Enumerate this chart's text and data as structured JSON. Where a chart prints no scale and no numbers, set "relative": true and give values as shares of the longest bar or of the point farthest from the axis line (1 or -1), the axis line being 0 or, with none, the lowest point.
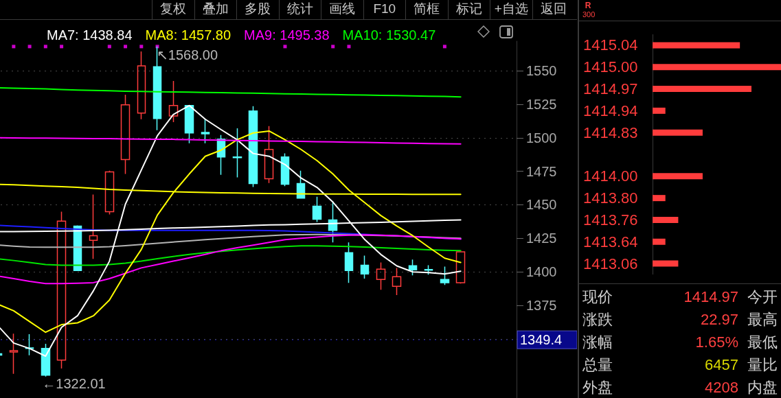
{
  "chart_data": [
    {
      "type": "candlestick",
      "categories": [
        null,
        null,
        null,
        null,
        null,
        null,
        null,
        null,
        null,
        null,
        null,
        null,
        null,
        null,
        null,
        null,
        null,
        null,
        null,
        null,
        null,
        null,
        null,
        null,
        null,
        null,
        null,
        null,
        null,
        null,
        null,
        null,
        null
      ],
      "ohlc": [
        [
          1339,
          1340,
          1337,
          1338
        ],
        [
          1340.3,
          1354,
          1324,
          1341.3
        ],
        [
          1343.4,
          1353.6,
          1337.8,
          1342.9
        ],
        [
          1342.9,
          1346.4,
          1322.01,
          1323
        ],
        [
          1334.2,
          1444.9,
          1328,
          1437.8
        ],
        [
          1434.2,
          1434.7,
          1401,
          1401
        ],
        [
          1423.5,
          1457.7,
          1409.7,
          1427
        ],
        [
          1444.9,
          1475.5,
          1442.9,
          1474.5
        ],
        [
          1483.7,
          1532.1,
          1473,
          1524.5
        ],
        [
          1518.4,
          1564.3,
          1513.8,
          1553.6
        ],
        [
          1553,
          1568,
          1505.6,
          1514.3
        ],
        [
          1516.3,
          1542.3,
          1511.7,
          1524
        ],
        [
          1524,
          1524,
          1495.9,
          1503.6
        ],
        [
          1504,
          1513.8,
          1495.9,
          1503
        ],
        [
          1499,
          1502,
          1472.4,
          1485.7
        ],
        [
          1485.7,
          1507,
          1470.4,
          1485.2
        ],
        [
          1519.9,
          1523.5,
          1463.3,
          1465.8
        ],
        [
          1469.4,
          1508.7,
          1466.3,
          1491.3
        ],
        [
          1485.7,
          1488.3,
          1464,
          1465.3
        ],
        [
          1465.8,
          1475.5,
          1455,
          1455
        ],
        [
          1449,
          1456,
          1437.2,
          1439.3
        ],
        [
          1438.8,
          1452.5,
          1422,
          1431
        ],
        [
          1414.3,
          1422,
          1391.8,
          1401
        ],
        [
          1405,
          1412.2,
          1395,
          1398.5
        ],
        [
          1394.4,
          1407,
          1386.7,
          1402
        ],
        [
          1389.3,
          1403,
          1382.7,
          1396.4
        ],
        [
          1404.6,
          1409.2,
          1397.4,
          1401.5
        ],
        [
          1401.8,
          1405,
          1398,
          1401.3
        ],
        [
          1394.4,
          1404,
          1390.3,
          1392
        ],
        [
          1392,
          1415,
          1391.3,
          1414.97
        ],
        null,
        null,
        null
      ],
      "colors": [
        "#54fcfc",
        "#ff3c3c",
        "#54fcfc",
        "#54fcfc",
        "#ff3c3c",
        "#54fcfc",
        "#ff3c3c",
        "#ff3c3c",
        "#ff3c3c",
        "#ff3c3c",
        "#54fcfc",
        "#ff3c3c",
        "#54fcfc",
        "#54fcfc",
        "#54fcfc",
        "#54fcfc",
        "#54fcfc",
        "#ff3c3c",
        "#54fcfc",
        "#54fcfc",
        "#54fcfc",
        "#54fcfc",
        "#54fcfc",
        "#54fcfc",
        "#ff3c3c",
        "#ff3c3c",
        "#54fcfc",
        "#54fcfc",
        "#54fcfc",
        "#ff3c3c",
        null,
        null,
        null
      ],
      "series": [
        {
          "type": "line",
          "color": "#1e1eff",
          "values": [
            1434.7,
            1434.2,
            1433.6,
            1433,
            1432.4,
            1431.8,
            1431.3,
            1431,
            1431,
            1431,
            1431,
            1431,
            1431,
            1431,
            1431,
            1431,
            1431,
            1430.8,
            1430.5,
            1430,
            1429.5,
            1429,
            1428.5,
            1428,
            1427.4,
            1426.8,
            1426.2,
            1425.6,
            1425,
            1424.5,
            null,
            null,
            null
          ]
        },
        {
          "type": "line",
          "color": "#b4b4b4",
          "values": [
            1420,
            1419.2,
            1418.6,
            1418.4,
            1418.4,
            1418.4,
            1418.4,
            1418.8,
            1419.6,
            1420.5,
            1421.4,
            1422.3,
            1423.2,
            1424,
            1424.8,
            1425.6,
            1426.3,
            1427,
            1427.6,
            1427.8,
            1427.9,
            1427.8,
            1427.6,
            1427.4,
            1427.1,
            1426.8,
            1426.4,
            1426,
            1425.5,
            1425,
            null,
            null,
            null
          ]
        },
        {
          "type": "line",
          "color": "#00e600",
          "values": [
            1409.7,
            1408.5,
            1407,
            1405.5,
            1405,
            1405,
            1405,
            1405.5,
            1406.5,
            1408,
            1409.8,
            1411.5,
            1413,
            1414.3,
            1415.4,
            1416.4,
            1417.3,
            1418.2,
            1418.9,
            1419.4,
            1419.4,
            1419.2,
            1418.9,
            1418.5,
            1418,
            1417.5,
            1417,
            1416.5,
            1416.1,
            1415.8,
            null,
            null,
            null
          ]
        },
        {
          "type": "line",
          "color": "#ff00ff",
          "values": [
            1397,
            1395,
            1393,
            1391.3,
            1391.3,
            1391.6,
            1392,
            1395,
            1399,
            1403,
            1405.5,
            1408,
            1410.5,
            1413,
            1415.8,
            1418,
            1420,
            1422,
            1424,
            1425,
            1426,
            1426.8,
            1427.4,
            1427.6,
            1427.4,
            1427,
            1426.4,
            1425.8,
            1425.1,
            1424.5,
            null,
            null,
            null
          ]
        },
        {
          "type": "line",
          "color": "#ffff00",
          "values": [
            1376,
            1371,
            1363,
            1355,
            1360.7,
            1362,
            1367.3,
            1379,
            1399,
            1416.8,
            1442.3,
            1459,
            1473,
            1486.2,
            1490.8,
            1498.5,
            1503.6,
            1505,
            1498.5,
            1491.3,
            1483,
            1473,
            1461,
            1451.5,
            1442,
            1434.2,
            1427,
            1418.4,
            1410.2,
            1407,
            null,
            null,
            null
          ]
        },
        {
          "type": "line",
          "color": "#ffffff",
          "values": [
            1360,
            1347,
            1342.9,
            1337.2,
            1358.7,
            1367.3,
            1386,
            1408,
            1450.5,
            1476,
            1501.5,
            1517.3,
            1524,
            1513.8,
            1506,
            1498.5,
            1488.3,
            1486.2,
            1480,
            1470,
            1463,
            1452,
            1438,
            1424,
            1413,
            1404.5,
            1400,
            1399.5,
            1398.5,
            1400.5,
            null,
            null,
            null
          ]
        },
        {
          "type": "line",
          "name": "MA7: 1438.84",
          "color": "#ffffff",
          "values": [
            1430.1,
            1430.1,
            1430.2,
            1430.3,
            1430.4,
            1430.6,
            1430.8,
            1431.1,
            1431.5,
            1431.9,
            1432.3,
            1432.7,
            1433,
            1433.4,
            1433.8,
            1434.2,
            1434.6,
            1435,
            1435.2,
            1435.5,
            1435.8,
            1436.1,
            1436.4,
            1436.7,
            1437,
            1437.3,
            1437.7,
            1438.1,
            1438.5,
            1438.8,
            null,
            null,
            null
          ]
        },
        {
          "type": "line",
          "name": "MA8: 1457.80",
          "color": "#ffff00",
          "values": [
            1465.3,
            1465,
            1464.5,
            1464,
            1463.5,
            1463,
            1462.3,
            1461.5,
            1461,
            1460.6,
            1460.2,
            1459.8,
            1459.5,
            1459.2,
            1459,
            1458.8,
            1458.6,
            1458.4,
            1458.3,
            1458.2,
            1458.1,
            1458,
            1458,
            1457.9,
            1457.9,
            1457.9,
            1457.8,
            1457.8,
            1457.8,
            1457.8,
            null,
            null,
            null
          ]
        },
        {
          "type": "line",
          "name": "MA9: 1495.38",
          "color": "#ff00ff",
          "values": [
            1500,
            1499.9,
            1499.8,
            1499.7,
            1499.6,
            1499.5,
            1499.4,
            1499.3,
            1499.1,
            1499,
            1498.9,
            1498.8,
            1498.6,
            1498.4,
            1498.2,
            1498,
            1497.8,
            1497.6,
            1497.5,
            1497.3,
            1497.1,
            1496.9,
            1496.7,
            1496.5,
            1496.3,
            1496.1,
            1495.9,
            1495.7,
            1495.5,
            1495.4,
            null,
            null,
            null
          ]
        },
        {
          "type": "line",
          "name": "MA10: 1530.47",
          "color": "#00ff00",
          "values": [
            1537.2,
            1537,
            1536.7,
            1536.5,
            1536,
            1535.6,
            1535.3,
            1535,
            1534.7,
            1534.5,
            1534.3,
            1534.1,
            1534,
            1533.8,
            1533.6,
            1533.4,
            1533.2,
            1533,
            1532.8,
            1532.6,
            1532.4,
            1532.2,
            1532,
            1531.8,
            1531.6,
            1531.4,
            1531.2,
            1531,
            1530.8,
            1530.5,
            null,
            null,
            null
          ]
        },
        {
          "type": "scatter",
          "marker": "square",
          "color": "#ff00ff",
          "values": [
            null,
            1568,
            1568,
            1568,
            1568,
            null,
            null,
            1568,
            1568,
            1568,
            1568,
            null,
            null,
            null,
            null,
            null,
            null,
            null,
            1568,
            null,
            null,
            1568,
            1568,
            null,
            null,
            null,
            null,
            null,
            1568,
            null,
            null,
            null,
            null
          ]
        }
      ],
      "ylim": [
        1306,
        1572
      ],
      "yticks": [
        {
          "value": 1350,
          "label": null
        },
        1375,
        1400,
        1425,
        1450,
        1475,
        1500,
        1525,
        1550
      ],
      "grid": "y",
      "legend": "top",
      "marker": "none",
      "line_style": "solid",
      "ref_lines": [
        {
          "axis": "y",
          "value": 1349.4,
          "label": "1349.4",
          "color": "#08088a",
          "line_style": "dotted"
        }
      ],
      "annotations": [
        "复权",
        "叠加",
        "多股",
        "统计",
        "画线",
        "F10",
        "简框",
        "标记",
        "+自选",
        "返回",
        "↖1568.00",
        "←1322.01"
      ]
    },
    {
      "type": "bar",
      "orientation": "horizontal",
      "relative": true,
      "title": "R",
      "subtitle": "300",
      "color": "#ff3c3c",
      "categories": [
        "1415.04",
        "1415.00",
        "1414.97",
        "1414.94",
        "1414.83",
        null,
        "1414.00",
        "1413.80",
        "1413.76",
        "1413.64",
        "1413.06"
      ],
      "values": [
        0.68,
        1,
        0.77,
        0.1,
        0.39,
        null,
        0.39,
        0.1,
        0.2,
        0.1,
        0.2
      ]
    },
    {
      "type": "other",
      "categories": [
        "现价",
        "涨跌",
        "涨幅",
        "总量",
        "外盘"
      ],
      "value_labels": [
        "1414.97",
        "22.97",
        "1.65%",
        "6457",
        "4208"
      ],
      "colors": [
        "#ff4040",
        "#ff4040",
        "#ff4040",
        "#d8d800",
        "#ff4040"
      ],
      "annotations": [
        "今开",
        "最高",
        "最低",
        "量比",
        "内盘"
      ]
    }
  ]
}
